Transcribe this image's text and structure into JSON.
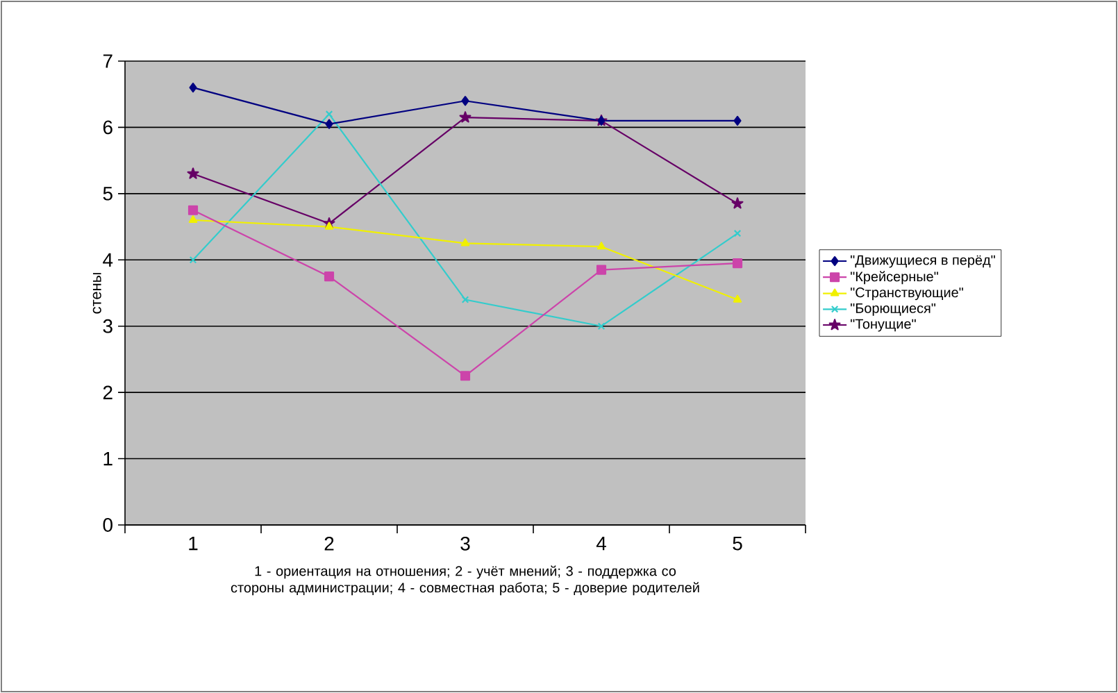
{
  "chart_data": {
    "type": "line",
    "xlabel": "1 - ориентация на отношения; 2 - учёт мнений; 3 - поддержка со стороны администрации; 4 - совместная работа; 5 - доверие родителей",
    "ylabel": "стены",
    "categories": [
      "1",
      "2",
      "3",
      "4",
      "5"
    ],
    "series": [
      {
        "name": "\"Движущиеся в перёд\"",
        "color": "#000080",
        "marker": "diamond",
        "values": [
          6.6,
          6.05,
          6.4,
          6.1,
          6.1
        ]
      },
      {
        "name": "\"Крейсерные\"",
        "color": "#cc44aa",
        "marker": "square",
        "values": [
          4.75,
          3.75,
          2.25,
          3.85,
          3.95
        ]
      },
      {
        "name": "\"Странствующие\"",
        "color": "#f0f000",
        "marker": "triangle",
        "values": [
          4.6,
          4.5,
          4.25,
          4.2,
          3.4
        ]
      },
      {
        "name": "\"Борющиеся\"",
        "color": "#33cccc",
        "marker": "cross",
        "values": [
          4.0,
          6.2,
          3.4,
          3.0,
          4.4
        ]
      },
      {
        "name": "\"Тонущие\"",
        "color": "#660066",
        "marker": "star",
        "values": [
          5.3,
          4.55,
          6.15,
          6.1,
          4.85
        ]
      }
    ],
    "ylim": [
      0,
      7
    ],
    "yticks": [
      0,
      1,
      2,
      3,
      4,
      5,
      6,
      7
    ],
    "grid": "y",
    "legend": "right",
    "line_style": "solid"
  }
}
